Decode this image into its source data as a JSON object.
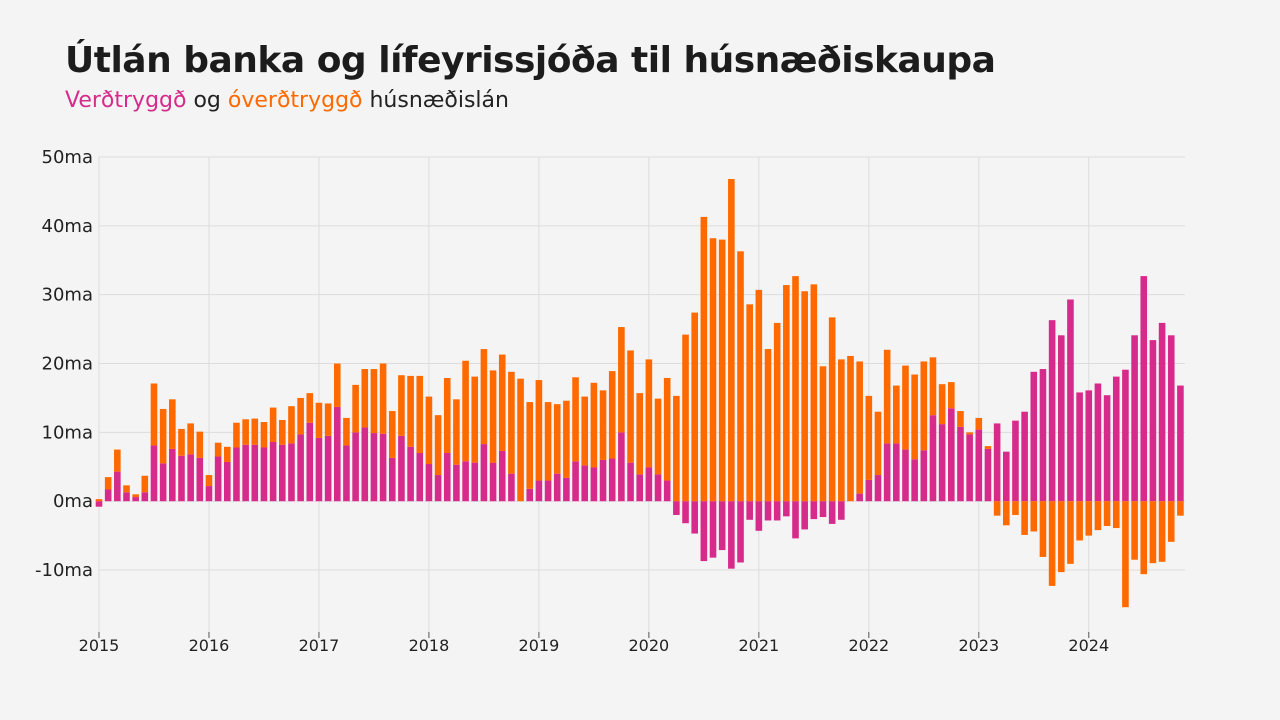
{
  "title": "Útlán banka og lífeyrissjóða til húsnæðiskaupa",
  "subtitle": {
    "part1": "Verðtryggð",
    "part2": " og ",
    "part3": "óverðtryggð",
    "part4": " húsnæðislán"
  },
  "colors": {
    "indexed": "#d72b8c",
    "nonindexed": "#ff6a00",
    "grid": "#dcdcdc",
    "background": "#f4f4f4"
  },
  "chart_data": {
    "type": "bar",
    "stacked": true,
    "x_start": "2015-01",
    "x_frequency": "monthly",
    "ylim": [
      -19,
      50
    ],
    "y_unit": "ma",
    "y_ticks": [
      {
        "value": 50,
        "label": "50ma"
      },
      {
        "value": 40,
        "label": "40ma"
      },
      {
        "value": 30,
        "label": "30ma"
      },
      {
        "value": 20,
        "label": "20ma"
      },
      {
        "value": 10,
        "label": "10ma"
      },
      {
        "value": 0,
        "label": "0ma"
      },
      {
        "value": -10,
        "label": "-10ma"
      }
    ],
    "x_ticks": [
      "2015",
      "2016",
      "2017",
      "2018",
      "2019",
      "2020",
      "2021",
      "2022",
      "2023",
      "2024"
    ],
    "grid": true,
    "series": [
      {
        "name": "Verðtryggð",
        "values": [
          -0.8,
          1.7,
          4.3,
          1.3,
          0.6,
          1.3,
          8.1,
          5.5,
          7.6,
          6.6,
          6.8,
          6.3,
          2.2,
          6.5,
          5.7,
          7.8,
          8.2,
          8.2,
          7.8,
          8.6,
          8.2,
          8.4,
          9.7,
          11.4,
          9.2,
          9.5,
          13.7,
          8.1,
          10.0,
          10.7,
          9.9,
          9.8,
          6.3,
          9.5,
          7.9,
          7.0,
          5.4,
          3.8,
          7.0,
          5.3,
          5.8,
          5.6,
          8.3,
          5.6,
          7.3,
          4.0,
          0.0,
          1.8,
          3.0,
          3.0,
          4.0,
          3.4,
          5.8,
          5.2,
          4.9,
          6.0,
          6.2,
          10.0,
          5.6,
          3.9,
          4.9,
          3.9,
          3.0,
          -2.0,
          -3.2,
          -4.7,
          -8.7,
          -8.2,
          -7.1,
          -9.8,
          -8.9,
          -2.7,
          -4.3,
          -2.8,
          -2.8,
          -2.2,
          -5.4,
          -4.1,
          -2.6,
          -2.3,
          -3.3,
          -2.7,
          0.0,
          1.1,
          3.1,
          3.8,
          8.4,
          8.4,
          7.5,
          6.1,
          7.4,
          12.5,
          11.2,
          13.5,
          10.8,
          9.7,
          10.4,
          7.6,
          11.3,
          7.2,
          11.7,
          13.0,
          18.8,
          19.2,
          26.3,
          24.1,
          29.3,
          15.8,
          16.1,
          17.1,
          15.4,
          18.1,
          19.1,
          24.1,
          32.7,
          23.4,
          25.9,
          24.1,
          16.8
        ]
      },
      {
        "name": "óverðtryggð",
        "values": [
          0.3,
          1.8,
          3.2,
          1.0,
          0.4,
          2.4,
          9.0,
          7.9,
          7.2,
          3.9,
          4.5,
          3.8,
          1.6,
          2.0,
          2.2,
          3.6,
          3.7,
          3.8,
          3.7,
          5.0,
          3.6,
          5.4,
          5.3,
          4.3,
          5.1,
          4.7,
          6.3,
          4.0,
          6.9,
          8.5,
          9.3,
          10.2,
          6.8,
          8.8,
          10.3,
          11.2,
          9.8,
          8.7,
          10.9,
          9.5,
          14.6,
          12.5,
          13.8,
          13.4,
          14.0,
          14.8,
          17.8,
          12.6,
          14.6,
          11.4,
          10.1,
          11.2,
          12.2,
          10.0,
          12.3,
          10.1,
          12.7,
          15.3,
          16.3,
          11.8,
          15.7,
          11.0,
          14.9,
          15.3,
          24.2,
          27.4,
          41.3,
          38.2,
          38.0,
          46.8,
          36.3,
          28.6,
          30.7,
          22.1,
          25.9,
          31.4,
          32.7,
          30.5,
          31.5,
          19.6,
          26.7,
          20.6,
          21.1,
          19.2,
          12.2,
          9.2,
          13.6,
          8.4,
          12.2,
          12.3,
          12.9,
          8.4,
          5.8,
          3.8,
          2.3,
          0.3,
          1.7,
          0.4,
          -2.1,
          -3.5,
          -2.0,
          -4.9,
          -4.4,
          -8.1,
          -12.3,
          -10.3,
          -9.1,
          -5.7,
          -5.0,
          -4.2,
          -3.6,
          -3.9,
          -15.4,
          -8.5,
          -10.6,
          -9.0,
          -8.8,
          -5.9,
          -2.1
        ]
      }
    ]
  }
}
